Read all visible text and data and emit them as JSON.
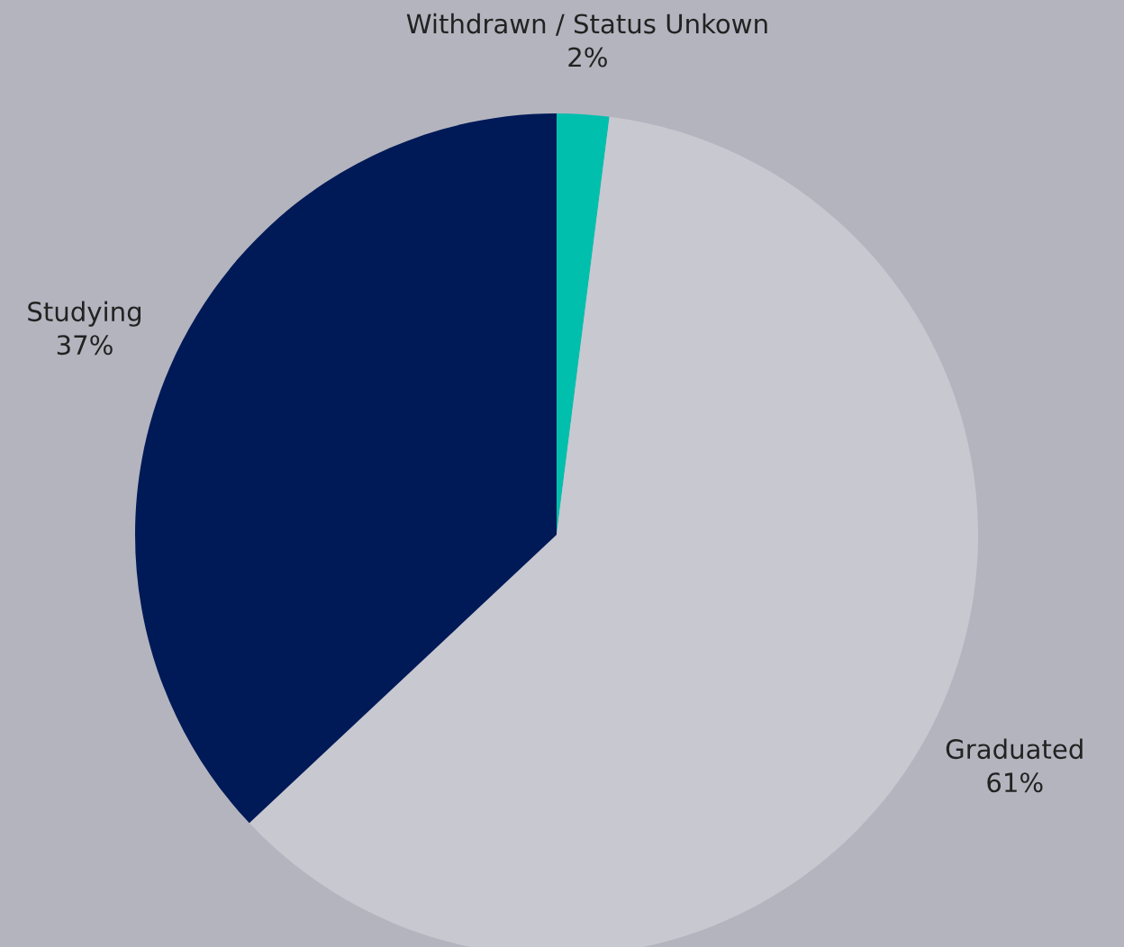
{
  "chart_data": {
    "type": "pie",
    "categories": [
      "Withdrawn / Status Unkown",
      "Graduated",
      "Studying"
    ],
    "values": [
      2,
      61,
      37
    ],
    "colors": [
      "#00bfad",
      "#c8c8d1",
      "#001a57"
    ],
    "value_labels": [
      "2%",
      "61%",
      "37%"
    ],
    "legend": false
  }
}
